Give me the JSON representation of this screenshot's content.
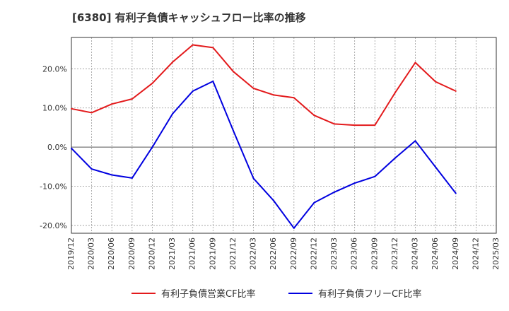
{
  "chart_data": {
    "type": "line",
    "title": "[6380]  有利子負債キャッシュフロー比率の推移",
    "x": [
      "2019/12",
      "2020/03",
      "2020/06",
      "2020/09",
      "2020/12",
      "2021/03",
      "2021/06",
      "2021/09",
      "2021/12",
      "2022/03",
      "2022/06",
      "2022/09",
      "2022/12",
      "2023/03",
      "2023/06",
      "2023/09",
      "2023/12",
      "2024/03",
      "2024/06",
      "2024/09",
      "2024/12",
      "2025/03"
    ],
    "ylim": [
      -22,
      28
    ],
    "yticks": [
      20,
      10,
      0,
      -10,
      -20
    ],
    "ytick_labels": [
      "20.0%",
      "10.0%",
      "0.0%",
      "-10.0%",
      "-20.0%"
    ],
    "grid": true,
    "legend_position": "bottom",
    "series": [
      {
        "name": "有利子負債営業CF比率",
        "color": "#e31a1c",
        "values": [
          9.8,
          8.8,
          11.0,
          12.3,
          16.3,
          21.7,
          26.1,
          25.4,
          19.3,
          15.0,
          13.3,
          12.6,
          8.1,
          5.9,
          5.6,
          5.6,
          13.9,
          21.6,
          16.7,
          14.3,
          null,
          null
        ]
      },
      {
        "name": "有利子負債フリーCF比率",
        "color": "#0000e0",
        "values": [
          -0.3,
          -5.6,
          -7.1,
          -7.9,
          0.0,
          8.5,
          14.3,
          16.8,
          4.2,
          -8.0,
          -13.7,
          -20.7,
          -14.2,
          -11.5,
          -9.2,
          -7.5,
          -2.8,
          1.6,
          -5.1,
          -11.8,
          null,
          null
        ]
      }
    ]
  }
}
